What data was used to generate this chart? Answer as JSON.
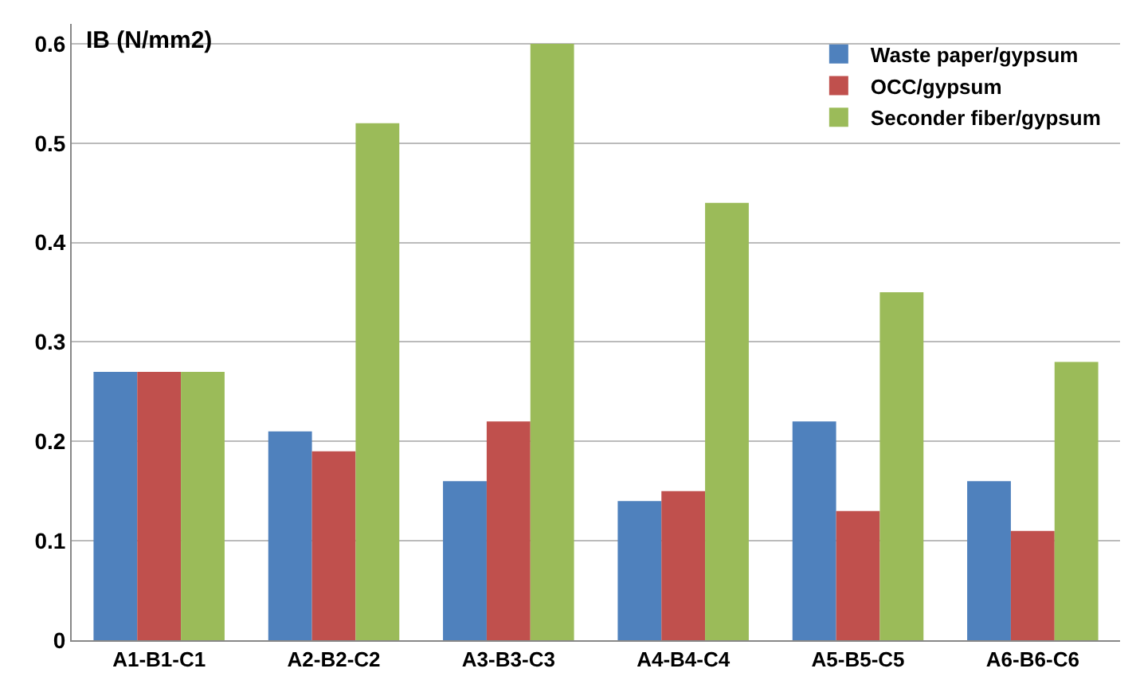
{
  "chart_data": {
    "type": "bar",
    "ylabel": "IB (N/mm2)",
    "categories": [
      "A1-B1-C1",
      "A2-B2-C2",
      "A3-B3-C3",
      "A4-B4-C4",
      "A5-B5-C5",
      "A6-B6-C6"
    ],
    "series": [
      {
        "name": "Waste paper/gypsum",
        "color": "#4f81bd",
        "values": [
          0.27,
          0.21,
          0.16,
          0.14,
          0.22,
          0.16
        ]
      },
      {
        "name": "OCC/gypsum",
        "color": "#c0504d",
        "values": [
          0.27,
          0.19,
          0.22,
          0.15,
          0.13,
          0.11
        ]
      },
      {
        "name": "Seconder fiber/gypsum",
        "color": "#9bbb59",
        "values": [
          0.27,
          0.52,
          0.6,
          0.44,
          0.35,
          0.28
        ]
      }
    ],
    "ylim": [
      0,
      0.62
    ],
    "yticks": [
      0,
      0.1,
      0.2,
      0.3,
      0.4,
      0.5,
      0.6
    ],
    "grid": "y",
    "legend": "top right"
  }
}
